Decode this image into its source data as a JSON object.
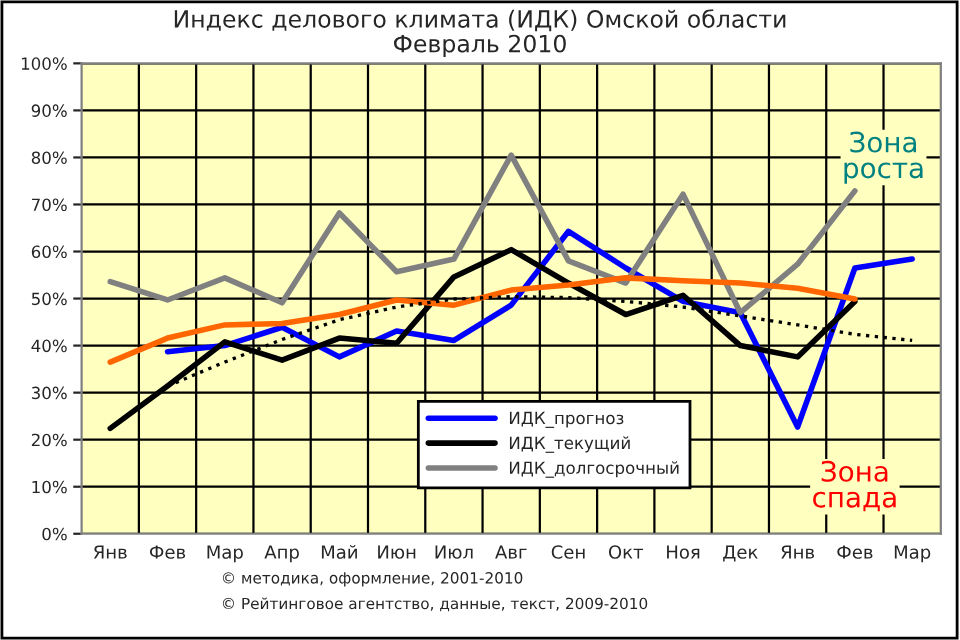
{
  "chart_data": {
    "type": "line",
    "title": "Индекс делового климата (ИДК) Омской области\nФевраль 2010",
    "categories": [
      "Янв",
      "Фев",
      "Мар",
      "Апр",
      "Май",
      "Июн",
      "Июл",
      "Авг",
      "Сен",
      "Окт",
      "Ноя",
      "Дек",
      "Янв",
      "Фев",
      "Мар"
    ],
    "series": [
      {
        "name": "ИДК_прогноз",
        "color": "#0000ff",
        "values": [
          null,
          38.7,
          40,
          43.9,
          37.6,
          43.1,
          41.1,
          48.6,
          64.3,
          56.5,
          49.4,
          47,
          22.7,
          56.5,
          58.4
        ]
      },
      {
        "name": "ИДК_текущий",
        "color": "#000000",
        "values": [
          22.4,
          31.4,
          40.8,
          36.9,
          41.6,
          40.5,
          54.6,
          60.4,
          53.3,
          46.6,
          50.7,
          40,
          37.6,
          49.4,
          null
        ]
      },
      {
        "name": "ИДК_долгосрочный",
        "color": "#808080",
        "values": [
          53.6,
          49.7,
          54.4,
          49.1,
          68.2,
          55.7,
          58.4,
          80.5,
          58,
          53.3,
          72.2,
          47,
          57.3,
          72.9,
          null
        ]
      },
      {
        "color": "#ff6600",
        "values": [
          36.5,
          41.6,
          44.4,
          44.7,
          46.6,
          49.7,
          48.6,
          51.8,
          52.9,
          54.4,
          53.8,
          53.3,
          52.2,
          49.9,
          null
        ]
      },
      {
        "color": "#000000",
        "line_style": "dotted",
        "values": [
          null,
          31.4,
          36.5,
          41.3,
          45.5,
          48.2,
          49.9,
          50.4,
          50.2,
          49.4,
          48.2,
          46.3,
          44.4,
          42.4,
          41.1
        ]
      }
    ],
    "ylim": [
      0,
      100
    ],
    "yticks": [
      {
        "value": 0,
        "label": "0%"
      },
      {
        "value": 10,
        "label": "10%"
      },
      {
        "value": 20,
        "label": "20%"
      },
      {
        "value": 30,
        "label": "30%"
      },
      {
        "value": 40,
        "label": "40%"
      },
      {
        "value": 50,
        "label": "50%"
      },
      {
        "value": 60,
        "label": "60%"
      },
      {
        "value": 70,
        "label": "70%"
      },
      {
        "value": 80,
        "label": "80%"
      },
      {
        "value": 90,
        "label": "90%"
      },
      {
        "value": 100,
        "label": "100%"
      }
    ],
    "grid": true,
    "legend": "bottom",
    "line_style": "solid",
    "annotations": [
      "Зона\nроста",
      "Зона\nспада",
      "© методика, оформление, 2001-2010",
      "© Рейтинговое агентство, данные, текст, 2009-2010"
    ]
  }
}
